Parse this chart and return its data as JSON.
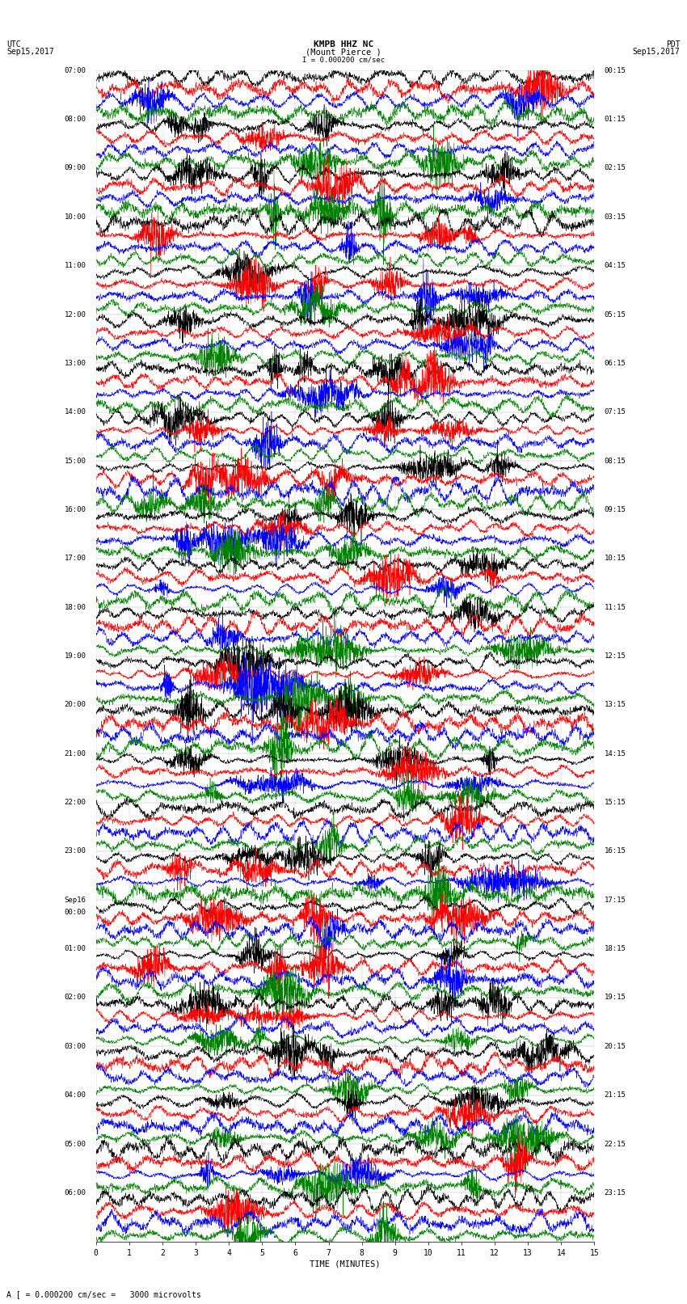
{
  "title_line1": "KMPB HHZ NC",
  "title_line2": "(Mount Pierce )",
  "title_line3": "I = 0.000200 cm/sec",
  "label_left_top1": "UTC",
  "label_left_top2": "Sep15,2017",
  "label_right_top1": "PDT",
  "label_right_top2": "Sep15,2017",
  "xlabel": "TIME (MINUTES)",
  "footnote": "A [ = 0.000200 cm/sec =   3000 microvolts",
  "trace_colors": [
    "black",
    "red",
    "blue",
    "green"
  ],
  "duration_minutes": 15,
  "left_times_utc": [
    "07:00",
    "",
    "",
    "",
    "08:00",
    "",
    "",
    "",
    "09:00",
    "",
    "",
    "",
    "10:00",
    "",
    "",
    "",
    "11:00",
    "",
    "",
    "",
    "12:00",
    "",
    "",
    "",
    "13:00",
    "",
    "",
    "",
    "14:00",
    "",
    "",
    "",
    "15:00",
    "",
    "",
    "",
    "16:00",
    "",
    "",
    "",
    "17:00",
    "",
    "",
    "",
    "18:00",
    "",
    "",
    "",
    "19:00",
    "",
    "",
    "",
    "20:00",
    "",
    "",
    "",
    "21:00",
    "",
    "",
    "",
    "22:00",
    "",
    "",
    "",
    "23:00",
    "",
    "",
    "",
    "Sep16",
    "00:00",
    "",
    "",
    "01:00",
    "",
    "",
    "",
    "02:00",
    "",
    "",
    "",
    "03:00",
    "",
    "",
    "",
    "04:00",
    "",
    "",
    "",
    "05:00",
    "",
    "",
    "",
    "06:00",
    "",
    "",
    ""
  ],
  "right_times_pdt": [
    "00:15",
    "",
    "",
    "",
    "01:15",
    "",
    "",
    "",
    "02:15",
    "",
    "",
    "",
    "03:15",
    "",
    "",
    "",
    "04:15",
    "",
    "",
    "",
    "05:15",
    "",
    "",
    "",
    "06:15",
    "",
    "",
    "",
    "07:15",
    "",
    "",
    "",
    "08:15",
    "",
    "",
    "",
    "09:15",
    "",
    "",
    "",
    "10:15",
    "",
    "",
    "",
    "11:15",
    "",
    "",
    "",
    "12:15",
    "",
    "",
    "",
    "13:15",
    "",
    "",
    "",
    "14:15",
    "",
    "",
    "",
    "15:15",
    "",
    "",
    "",
    "16:15",
    "",
    "",
    "",
    "17:15",
    "",
    "",
    "",
    "18:15",
    "",
    "",
    "",
    "19:15",
    "",
    "",
    "",
    "20:15",
    "",
    "",
    "",
    "21:15",
    "",
    "",
    "",
    "22:15",
    "",
    "",
    "",
    "23:15",
    "",
    "",
    ""
  ],
  "bg_color": "white",
  "font_size_title": 8,
  "font_size_axis": 7,
  "font_size_time": 6.5,
  "noise_seed": 42
}
